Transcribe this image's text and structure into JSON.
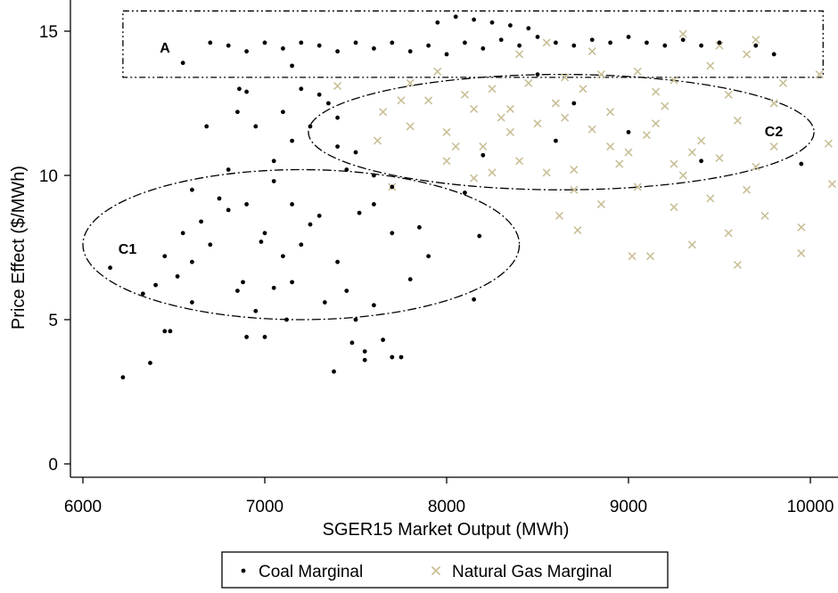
{
  "chart_data": {
    "type": "scatter",
    "title": "",
    "xlabel": "SGER15 Market Output (MWh)",
    "ylabel": "Price Effect ($/MWh)",
    "xlim": [
      5950,
      10150
    ],
    "ylim": [
      -0.5,
      15.7
    ],
    "xticks": [
      "6000",
      "7000",
      "8000",
      "9000",
      "10000"
    ],
    "yticks": [
      "0",
      "5",
      "10",
      "15"
    ],
    "grid": false,
    "legend_position": "bottom",
    "series": [
      {
        "name": "Coal Marginal",
        "marker": "dot",
        "color": "#000000",
        "points": [
          [
            6220,
            3.0
          ],
          [
            6370,
            3.5
          ],
          [
            6450,
            4.6
          ],
          [
            6480,
            4.6
          ],
          [
            6330,
            5.9
          ],
          [
            6400,
            6.2
          ],
          [
            6520,
            6.5
          ],
          [
            6600,
            7.0
          ],
          [
            6450,
            7.2
          ],
          [
            6700,
            7.6
          ],
          [
            6550,
            8.0
          ],
          [
            6650,
            8.4
          ],
          [
            6800,
            8.8
          ],
          [
            6750,
            9.2
          ],
          [
            6900,
            9.0
          ],
          [
            6600,
            9.5
          ],
          [
            6850,
            6.0
          ],
          [
            6950,
            5.3
          ],
          [
            6900,
            4.4
          ],
          [
            7000,
            4.4
          ],
          [
            7050,
            6.1
          ],
          [
            7150,
            6.3
          ],
          [
            7100,
            7.2
          ],
          [
            7200,
            7.6
          ],
          [
            7000,
            8.0
          ],
          [
            7250,
            8.3
          ],
          [
            7300,
            8.6
          ],
          [
            7150,
            9.0
          ],
          [
            7400,
            7.0
          ],
          [
            7450,
            6.0
          ],
          [
            7500,
            5.0
          ],
          [
            7480,
            4.2
          ],
          [
            7550,
            3.9
          ],
          [
            7380,
            3.2
          ],
          [
            7700,
            3.7
          ],
          [
            7750,
            3.7
          ],
          [
            7650,
            4.3
          ],
          [
            7600,
            5.5
          ],
          [
            7800,
            6.4
          ],
          [
            7700,
            8.0
          ],
          [
            7850,
            8.2
          ],
          [
            7600,
            9.0
          ],
          [
            7900,
            7.2
          ],
          [
            8180,
            7.9
          ],
          [
            8150,
            5.7
          ],
          [
            7050,
            10.5
          ],
          [
            7150,
            11.2
          ],
          [
            7250,
            11.7
          ],
          [
            7100,
            12.2
          ],
          [
            7300,
            12.8
          ],
          [
            7200,
            13.0
          ],
          [
            7350,
            12.5
          ],
          [
            7400,
            11.0
          ],
          [
            7500,
            10.8
          ],
          [
            7450,
            10.2
          ],
          [
            7600,
            10.0
          ],
          [
            6950,
            11.7
          ],
          [
            6850,
            12.2
          ],
          [
            6860,
            13.0
          ],
          [
            6900,
            12.9
          ],
          [
            6680,
            11.7
          ],
          [
            6800,
            10.2
          ],
          [
            7050,
            9.8
          ],
          [
            7150,
            13.8
          ],
          [
            6700,
            14.6
          ],
          [
            6800,
            14.5
          ],
          [
            6900,
            14.3
          ],
          [
            7000,
            14.6
          ],
          [
            7100,
            14.4
          ],
          [
            7200,
            14.6
          ],
          [
            7300,
            14.5
          ],
          [
            7400,
            14.3
          ],
          [
            7500,
            14.6
          ],
          [
            7600,
            14.4
          ],
          [
            7700,
            14.6
          ],
          [
            7800,
            14.3
          ],
          [
            7900,
            14.5
          ],
          [
            8000,
            14.2
          ],
          [
            8100,
            14.6
          ],
          [
            8200,
            14.4
          ],
          [
            8300,
            14.7
          ],
          [
            8400,
            14.5
          ],
          [
            8500,
            14.8
          ],
          [
            8600,
            14.6
          ],
          [
            8700,
            14.5
          ],
          [
            8800,
            14.7
          ],
          [
            8900,
            14.6
          ],
          [
            9000,
            14.8
          ],
          [
            9100,
            14.6
          ],
          [
            9200,
            14.5
          ],
          [
            9300,
            14.7
          ],
          [
            9400,
            14.5
          ],
          [
            9500,
            14.6
          ],
          [
            9700,
            14.5
          ],
          [
            9800,
            14.2
          ],
          [
            6550,
            13.9
          ],
          [
            8050,
            15.5
          ],
          [
            8150,
            15.4
          ],
          [
            8250,
            15.3
          ],
          [
            8350,
            15.2
          ],
          [
            8450,
            15.1
          ],
          [
            7950,
            15.3
          ],
          [
            8500,
            13.5
          ],
          [
            8700,
            12.5
          ],
          [
            9000,
            11.5
          ],
          [
            9400,
            10.5
          ],
          [
            9950,
            10.4
          ],
          [
            8200,
            10.7
          ],
          [
            8600,
            11.2
          ],
          [
            7700,
            9.6
          ],
          [
            8100,
            9.4
          ],
          [
            7400,
            12.0
          ],
          [
            6150,
            6.8
          ],
          [
            6600,
            5.6
          ],
          [
            7550,
            3.6
          ],
          [
            7520,
            8.7
          ],
          [
            6980,
            7.7
          ],
          [
            7330,
            5.6
          ],
          [
            6880,
            6.3
          ],
          [
            7120,
            5.0
          ]
        ]
      },
      {
        "name": "Natural Gas Marginal",
        "marker": "x",
        "color": "#c9bf97",
        "points": [
          [
            7650,
            12.2
          ],
          [
            7800,
            13.2
          ],
          [
            7900,
            12.6
          ],
          [
            8000,
            11.5
          ],
          [
            8100,
            12.8
          ],
          [
            8200,
            11.0
          ],
          [
            8300,
            12.0
          ],
          [
            8400,
            10.5
          ],
          [
            8500,
            11.8
          ],
          [
            8600,
            12.5
          ],
          [
            8700,
            10.2
          ],
          [
            8800,
            11.6
          ],
          [
            8900,
            12.2
          ],
          [
            9000,
            10.8
          ],
          [
            9100,
            11.4
          ],
          [
            9200,
            12.4
          ],
          [
            9300,
            10.0
          ],
          [
            9400,
            11.2
          ],
          [
            9500,
            10.6
          ],
          [
            9600,
            11.9
          ],
          [
            9700,
            10.3
          ],
          [
            9800,
            11.0
          ],
          [
            8250,
            13.0
          ],
          [
            8450,
            13.2
          ],
          [
            8650,
            13.4
          ],
          [
            8850,
            13.5
          ],
          [
            9050,
            13.6
          ],
          [
            9250,
            13.3
          ],
          [
            9450,
            13.8
          ],
          [
            9650,
            14.2
          ],
          [
            9850,
            13.2
          ],
          [
            10050,
            13.5
          ],
          [
            10100,
            11.1
          ],
          [
            10120,
            9.7
          ],
          [
            9950,
            8.2
          ],
          [
            9950,
            7.3
          ],
          [
            9750,
            8.6
          ],
          [
            9550,
            8.0
          ],
          [
            9600,
            6.9
          ],
          [
            9350,
            7.6
          ],
          [
            9120,
            7.2
          ],
          [
            9020,
            7.2
          ],
          [
            8720,
            8.1
          ],
          [
            8620,
            8.6
          ],
          [
            8850,
            9.0
          ],
          [
            9050,
            9.6
          ],
          [
            9450,
            9.2
          ],
          [
            9250,
            8.9
          ],
          [
            8000,
            10.5
          ],
          [
            7800,
            11.7
          ],
          [
            7620,
            11.2
          ],
          [
            7400,
            13.1
          ],
          [
            7700,
            9.6
          ],
          [
            8150,
            9.9
          ],
          [
            8550,
            10.1
          ],
          [
            8950,
            10.4
          ],
          [
            9350,
            10.8
          ],
          [
            9150,
            12.9
          ],
          [
            8750,
            13.0
          ],
          [
            8350,
            12.3
          ],
          [
            7950,
            13.6
          ],
          [
            8550,
            14.6
          ],
          [
            8800,
            14.3
          ],
          [
            9300,
            14.9
          ],
          [
            9500,
            14.5
          ],
          [
            9700,
            14.7
          ],
          [
            8400,
            14.2
          ],
          [
            8650,
            12.0
          ],
          [
            8150,
            12.3
          ],
          [
            9550,
            12.8
          ],
          [
            9800,
            12.5
          ],
          [
            8050,
            11.0
          ],
          [
            7750,
            12.6
          ],
          [
            9150,
            11.8
          ],
          [
            8350,
            11.5
          ],
          [
            8900,
            11.0
          ],
          [
            9250,
            10.4
          ],
          [
            8700,
            9.5
          ],
          [
            8250,
            10.1
          ],
          [
            9650,
            9.5
          ]
        ]
      }
    ],
    "annotations": [
      {
        "label": "A",
        "shape": "rectangle",
        "x_range": [
          6220,
          10070
        ],
        "y_range": [
          13.4,
          15.7
        ]
      },
      {
        "label": "C1",
        "shape": "ellipse",
        "center": [
          7200,
          7.6
        ],
        "x_radius": 1200,
        "y_radius": 2.6
      },
      {
        "label": "C2",
        "shape": "ellipse",
        "center": [
          8630,
          11.5
        ],
        "x_radius": 1390,
        "y_radius": 2.0
      }
    ],
    "legend": {
      "items": [
        {
          "label": "Coal Marginal",
          "marker": "dot"
        },
        {
          "label": "Natural Gas Marginal",
          "marker": "x"
        }
      ]
    }
  }
}
